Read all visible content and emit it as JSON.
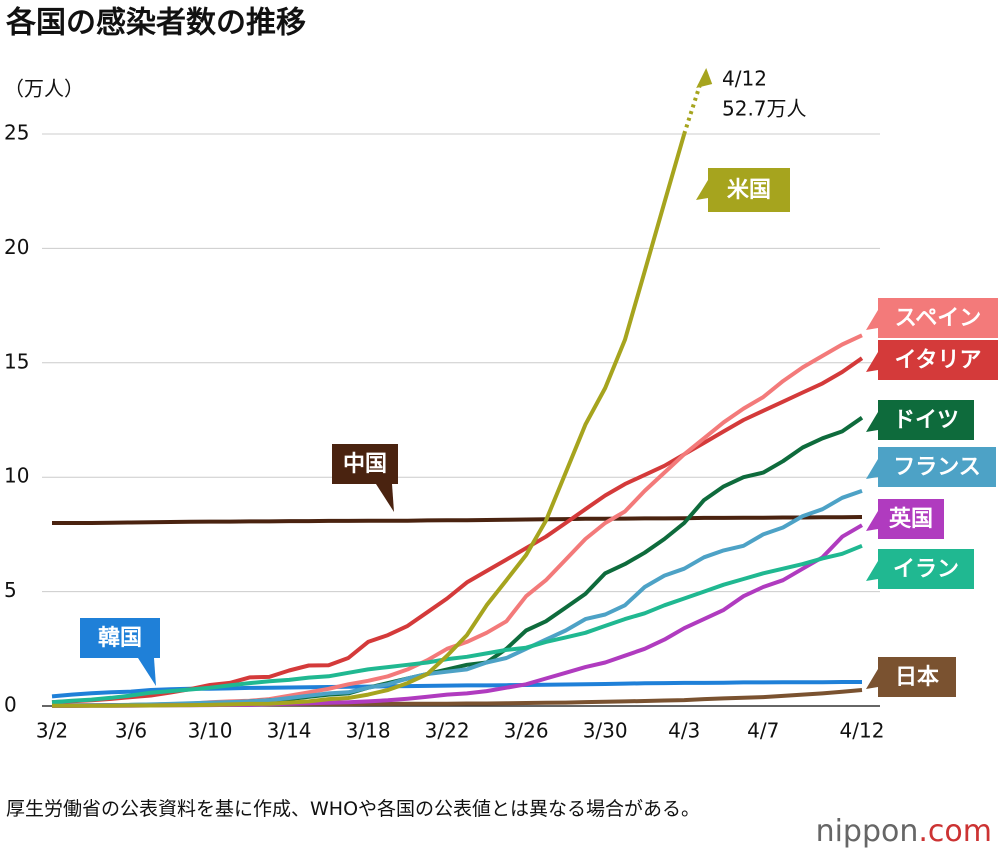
{
  "chart_data": {
    "type": "line",
    "title": "各国の感染者数の推移",
    "y_label": "（万人）",
    "annotation": {
      "date": "4/12",
      "value": "52.7万人"
    },
    "note": "厚生労働省の公表資料を基に作成、WHOや各国の公表値とは異なる場合がある。",
    "logo": {
      "name": "nippon",
      "suffix": ".com"
    },
    "categories": [
      "3/2",
      null,
      null,
      null,
      "3/6",
      null,
      null,
      null,
      "3/10",
      null,
      null,
      null,
      "3/14",
      null,
      null,
      null,
      "3/18",
      null,
      null,
      null,
      "3/22",
      null,
      null,
      null,
      "3/26",
      null,
      null,
      null,
      "3/30",
      null,
      null,
      null,
      "4/3",
      null,
      null,
      null,
      "4/7",
      null,
      null,
      null,
      null,
      "4/12"
    ],
    "ylim": [
      0,
      25
    ],
    "yticks": [
      0,
      5,
      10,
      15,
      20,
      25
    ],
    "grid": true,
    "series": [
      {
        "name": "中国",
        "color": "#4a2310",
        "values": [
          8.0,
          8.0,
          8.0,
          8.01,
          8.02,
          8.03,
          8.04,
          8.05,
          8.06,
          8.06,
          8.07,
          8.07,
          8.08,
          8.08,
          8.09,
          8.09,
          8.1,
          8.1,
          8.1,
          8.11,
          8.12,
          8.12,
          8.13,
          8.14,
          8.15,
          8.16,
          8.17,
          8.18,
          8.18,
          8.19,
          8.2,
          8.2,
          8.21,
          8.22,
          8.22,
          8.23,
          8.23,
          8.24,
          8.24,
          8.25,
          8.25,
          8.26
        ]
      },
      {
        "name": "韓国",
        "color": "#1f80d8",
        "values": [
          0.42,
          0.5,
          0.56,
          0.6,
          0.63,
          0.7,
          0.73,
          0.75,
          0.75,
          0.77,
          0.79,
          0.8,
          0.81,
          0.82,
          0.83,
          0.84,
          0.85,
          0.86,
          0.87,
          0.88,
          0.89,
          0.9,
          0.9,
          0.91,
          0.92,
          0.93,
          0.94,
          0.95,
          0.96,
          0.98,
          0.99,
          1.0,
          1.01,
          1.01,
          1.02,
          1.03,
          1.03,
          1.04,
          1.04,
          1.04,
          1.05,
          1.05
        ]
      },
      {
        "name": "日本",
        "color": "#7a5230",
        "values": [
          0.03,
          0.03,
          0.03,
          0.03,
          0.04,
          0.04,
          0.04,
          0.05,
          0.05,
          0.06,
          0.06,
          0.07,
          0.07,
          0.08,
          0.08,
          0.08,
          0.09,
          0.09,
          0.1,
          0.1,
          0.1,
          0.11,
          0.11,
          0.12,
          0.13,
          0.14,
          0.15,
          0.17,
          0.19,
          0.2,
          0.22,
          0.24,
          0.26,
          0.3,
          0.33,
          0.36,
          0.39,
          0.44,
          0.5,
          0.55,
          0.62,
          0.7
        ]
      },
      {
        "name": "イタリア",
        "color": "#d43a3a",
        "values": [
          0.17,
          0.21,
          0.25,
          0.31,
          0.39,
          0.46,
          0.59,
          0.74,
          0.92,
          1.01,
          1.25,
          1.27,
          1.55,
          1.77,
          1.78,
          2.1,
          2.8,
          3.1,
          3.5,
          4.1,
          4.7,
          5.4,
          5.9,
          6.4,
          6.9,
          7.4,
          8.0,
          8.6,
          9.2,
          9.7,
          10.1,
          10.5,
          11.0,
          11.5,
          12.0,
          12.5,
          12.9,
          13.3,
          13.7,
          14.1,
          14.6,
          15.2
        ]
      },
      {
        "name": "スペイン",
        "color": "#f37a7a",
        "values": [
          0.01,
          0.01,
          0.02,
          0.02,
          0.04,
          0.05,
          0.07,
          0.1,
          0.16,
          0.2,
          0.23,
          0.3,
          0.45,
          0.6,
          0.75,
          0.95,
          1.1,
          1.3,
          1.6,
          2.0,
          2.5,
          2.8,
          3.2,
          3.7,
          4.8,
          5.5,
          6.4,
          7.3,
          8.0,
          8.5,
          9.4,
          10.2,
          11.0,
          11.7,
          12.4,
          13.0,
          13.5,
          14.2,
          14.8,
          15.3,
          15.8,
          16.2
        ]
      },
      {
        "name": "ドイツ",
        "color": "#0e6b3c",
        "values": [
          0.01,
          0.01,
          0.02,
          0.03,
          0.05,
          0.06,
          0.08,
          0.1,
          0.12,
          0.15,
          0.2,
          0.25,
          0.3,
          0.4,
          0.5,
          0.55,
          0.8,
          1.0,
          1.2,
          1.4,
          1.6,
          1.8,
          1.9,
          2.5,
          3.3,
          3.7,
          4.3,
          4.9,
          5.8,
          6.2,
          6.7,
          7.3,
          8.0,
          9.0,
          9.6,
          10.0,
          10.2,
          10.7,
          11.3,
          11.7,
          12.0,
          12.6
        ]
      },
      {
        "name": "フランス",
        "color": "#4da2c6",
        "values": [
          0.01,
          0.02,
          0.03,
          0.04,
          0.05,
          0.07,
          0.09,
          0.12,
          0.15,
          0.17,
          0.2,
          0.25,
          0.35,
          0.45,
          0.55,
          0.6,
          0.8,
          0.95,
          1.2,
          1.4,
          1.5,
          1.6,
          1.9,
          2.1,
          2.5,
          2.9,
          3.3,
          3.8,
          4.0,
          4.4,
          5.2,
          5.7,
          6.0,
          6.5,
          6.8,
          7.0,
          7.5,
          7.8,
          8.3,
          8.6,
          9.1,
          9.4
        ]
      },
      {
        "name": "英国",
        "color": "#b03bbf",
        "values": [
          0.004,
          0.005,
          0.008,
          0.01,
          0.012,
          0.02,
          0.03,
          0.03,
          0.04,
          0.05,
          0.05,
          0.08,
          0.1,
          0.12,
          0.14,
          0.16,
          0.2,
          0.25,
          0.32,
          0.4,
          0.5,
          0.55,
          0.65,
          0.8,
          0.95,
          1.2,
          1.45,
          1.7,
          1.9,
          2.2,
          2.5,
          2.9,
          3.4,
          3.8,
          4.2,
          4.8,
          5.2,
          5.5,
          6.0,
          6.5,
          7.4,
          7.9
        ]
      },
      {
        "name": "イラン",
        "color": "#20b891",
        "values": [
          0.16,
          0.23,
          0.28,
          0.36,
          0.46,
          0.58,
          0.65,
          0.72,
          0.8,
          0.9,
          1.0,
          1.08,
          1.14,
          1.24,
          1.3,
          1.45,
          1.6,
          1.7,
          1.8,
          1.9,
          2.05,
          2.15,
          2.3,
          2.45,
          2.55,
          2.8,
          3.0,
          3.2,
          3.5,
          3.8,
          4.05,
          4.4,
          4.7,
          5.0,
          5.3,
          5.55,
          5.8,
          6.0,
          6.2,
          6.45,
          6.65,
          7.0
        ]
      },
      {
        "name": "米国",
        "color": "#a6a41e",
        "values": [
          0.01,
          0.01,
          0.01,
          0.01,
          0.02,
          0.02,
          0.03,
          0.04,
          0.05,
          0.07,
          0.09,
          0.1,
          0.15,
          0.2,
          0.3,
          0.35,
          0.5,
          0.7,
          1.0,
          1.4,
          2.2,
          3.1,
          4.4,
          5.5,
          6.6,
          8.1,
          10.2,
          12.3,
          13.9,
          16.0,
          19.0,
          22.0,
          25.0,
          null,
          null,
          null,
          null,
          null,
          null,
          null,
          null,
          null
        ]
      }
    ]
  }
}
